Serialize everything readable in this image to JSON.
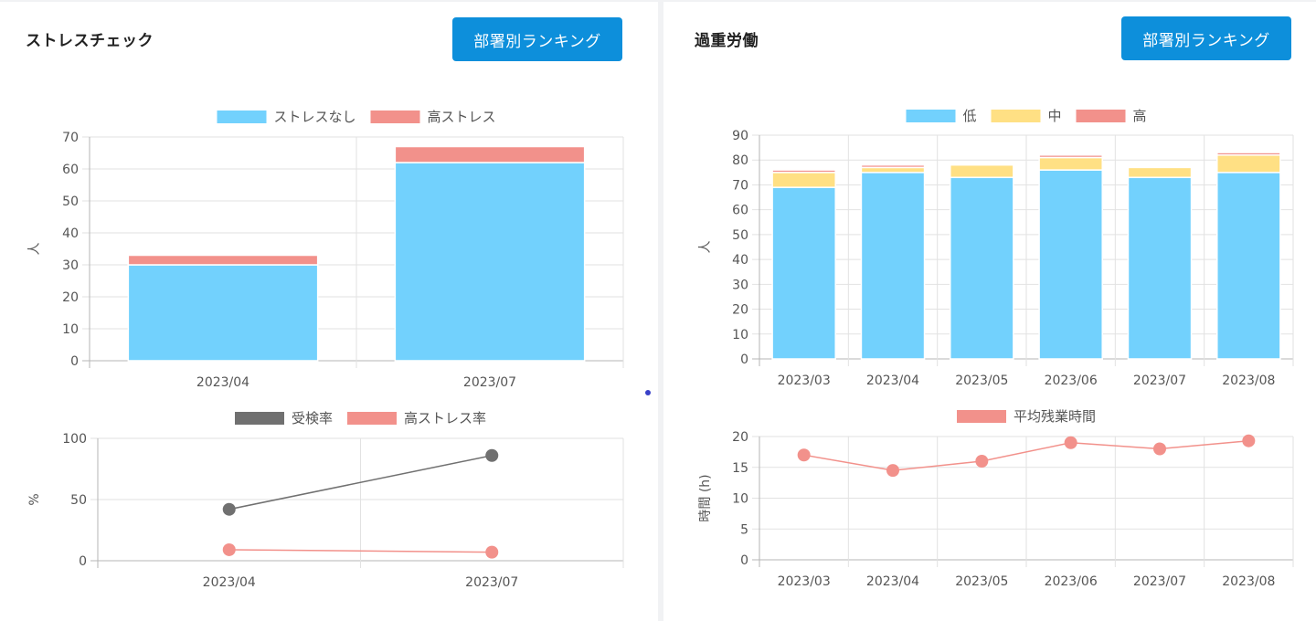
{
  "left_panel": {
    "title": "ストレスチェック",
    "ranking_button": "部署別ランキング"
  },
  "right_panel": {
    "title": "過重労働",
    "ranking_button": "部署別ランキング"
  },
  "colors": {
    "blue": "#72d1fd",
    "red": "#f2918b",
    "yellow": "#ffe084",
    "gray": "#707070",
    "grid": "#e2e2e2",
    "axis": "#b5b5b5",
    "text": "#555555",
    "button": "#0d8fdb"
  },
  "chart_data": [
    {
      "id": "stress",
      "type": "bar",
      "stacked": true,
      "categories": [
        "2023/04",
        "2023/07"
      ],
      "series": [
        {
          "name": "ストレスなし",
          "values": [
            30,
            62
          ],
          "color": "#72d1fd"
        },
        {
          "name": "高ストレス",
          "values": [
            3,
            5
          ],
          "color": "#f2918b"
        }
      ],
      "ylabel": "人",
      "ylim": [
        0,
        70
      ],
      "yticks": [
        0,
        10,
        20,
        30,
        40,
        50,
        60,
        70
      ],
      "grid": true,
      "legend": "top"
    },
    {
      "id": "rate",
      "type": "line",
      "categories": [
        "2023/04",
        "2023/07"
      ],
      "series": [
        {
          "name": "受検率",
          "values": [
            42,
            86
          ],
          "color": "#707070"
        },
        {
          "name": "高ストレス率",
          "values": [
            9,
            7
          ],
          "color": "#f2918b"
        }
      ],
      "ylabel": "%",
      "ylim": [
        0,
        100
      ],
      "yticks": [
        0,
        50,
        100
      ],
      "grid": true,
      "legend": "top"
    },
    {
      "id": "overwork",
      "type": "bar",
      "stacked": true,
      "categories": [
        "2023/03",
        "2023/04",
        "2023/05",
        "2023/06",
        "2023/07",
        "2023/08"
      ],
      "series": [
        {
          "name": "低",
          "values": [
            69,
            75,
            73,
            76,
            73,
            75
          ],
          "color": "#72d1fd"
        },
        {
          "name": "中",
          "values": [
            6,
            2,
            5,
            5,
            4,
            7
          ],
          "color": "#ffe084"
        },
        {
          "name": "高",
          "values": [
            1,
            1,
            0,
            1,
            0,
            1
          ],
          "color": "#f2918b"
        }
      ],
      "ylabel": "人",
      "ylim": [
        0,
        90
      ],
      "yticks": [
        0,
        10,
        20,
        30,
        40,
        50,
        60,
        70,
        80,
        90
      ],
      "grid": true,
      "legend": "top"
    },
    {
      "id": "overtime",
      "type": "line",
      "categories": [
        "2023/03",
        "2023/04",
        "2023/05",
        "2023/06",
        "2023/07",
        "2023/08"
      ],
      "series": [
        {
          "name": "平均残業時間",
          "values": [
            17,
            14.5,
            16,
            19,
            18,
            19.3
          ],
          "color": "#f2918b"
        }
      ],
      "ylabel": "時間 (h)",
      "ylim": [
        0,
        20
      ],
      "yticks": [
        0,
        5,
        10,
        15,
        20
      ],
      "grid": true,
      "legend": "top"
    }
  ]
}
